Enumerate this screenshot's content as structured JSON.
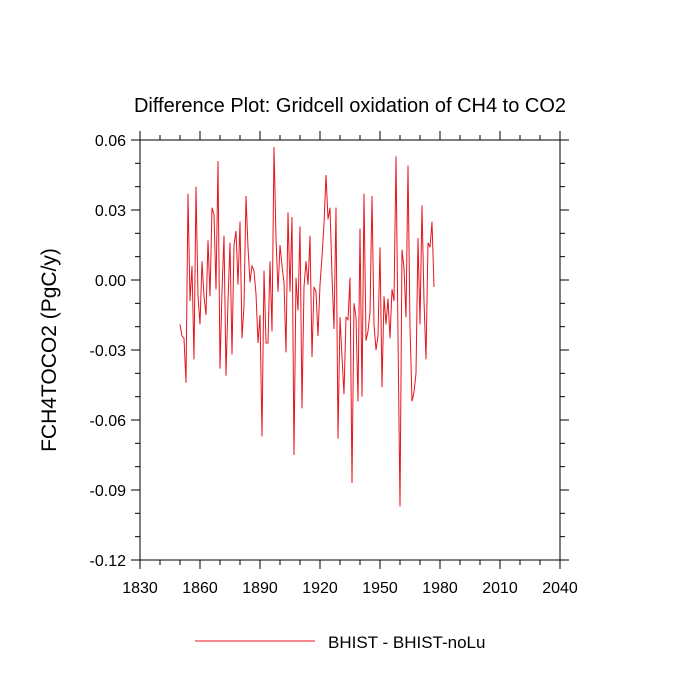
{
  "chart_data": {
    "type": "line",
    "title": "Difference Plot: Gridcell oxidation of CH4 to CO2",
    "xlabel": "",
    "ylabel": "FCH4TOCO2  (PgC/y)",
    "xlim": [
      1830,
      2040
    ],
    "ylim": [
      -0.12,
      0.06
    ],
    "x_ticks": [
      1830,
      1860,
      1890,
      1920,
      1950,
      1980,
      2010,
      2040
    ],
    "x_tick_labels": [
      "1830",
      "1860",
      "1890",
      "1920",
      "1950",
      "1980",
      "2010",
      "2040"
    ],
    "y_ticks": [
      0.06,
      0.03,
      0.0,
      -0.03,
      -0.06,
      -0.09,
      -0.12
    ],
    "y_tick_labels": [
      "0.06",
      "0.03",
      "0.00",
      "-0.03",
      "-0.06",
      "-0.09",
      "-0.12"
    ],
    "grid": false,
    "legend_position": "bottom-center",
    "series": [
      {
        "name": "BHIST - BHIST-noLu",
        "color": "#e8141e",
        "x_start": 1850,
        "x_step": 1,
        "values": [
          -0.019,
          -0.024,
          -0.025,
          -0.044,
          0.037,
          -0.009,
          0.006,
          -0.034,
          0.04,
          -0.007,
          -0.019,
          0.008,
          -0.007,
          -0.015,
          0.017,
          -0.007,
          0.031,
          0.028,
          -0.004,
          0.051,
          -0.038,
          -0.005,
          0.019,
          -0.041,
          -0.009,
          0.016,
          -0.032,
          0.015,
          0.021,
          -0.002,
          0.025,
          -0.025,
          -0.011,
          0.036,
          0.014,
          -0.001,
          0.006,
          0.004,
          -0.006,
          -0.027,
          -0.015,
          -0.067,
          0.004,
          -0.027,
          -0.027,
          0.008,
          -0.022,
          0.057,
          0.018,
          -0.005,
          0.015,
          0.006,
          -0.001,
          -0.031,
          0.029,
          -0.005,
          0.027,
          -0.075,
          0.001,
          -0.013,
          0.023,
          -0.055,
          -0.003,
          0.008,
          -0.002,
          0.019,
          -0.033,
          -0.003,
          -0.005,
          -0.024,
          -0.002,
          0.01,
          0.024,
          0.045,
          0.026,
          0.031,
          0.002,
          -0.021,
          0.031,
          -0.068,
          -0.016,
          -0.033,
          -0.049,
          -0.016,
          -0.017,
          0.001,
          -0.087,
          -0.01,
          -0.016,
          -0.052,
          0.022,
          -0.05,
          0.037,
          -0.026,
          -0.022,
          -0.014,
          0.036,
          -0.019,
          -0.03,
          -0.024,
          0.014,
          -0.046,
          -0.007,
          -0.019,
          -0.008,
          -0.025,
          -0.004,
          -0.009,
          0.053,
          -0.024,
          -0.097,
          0.013,
          0.005,
          -0.016,
          0.049,
          -0.02,
          -0.052,
          -0.048,
          -0.04,
          0.018,
          -0.019,
          0.032,
          -0.009,
          -0.034,
          0.016,
          0.014,
          0.025,
          -0.003
        ]
      }
    ]
  }
}
